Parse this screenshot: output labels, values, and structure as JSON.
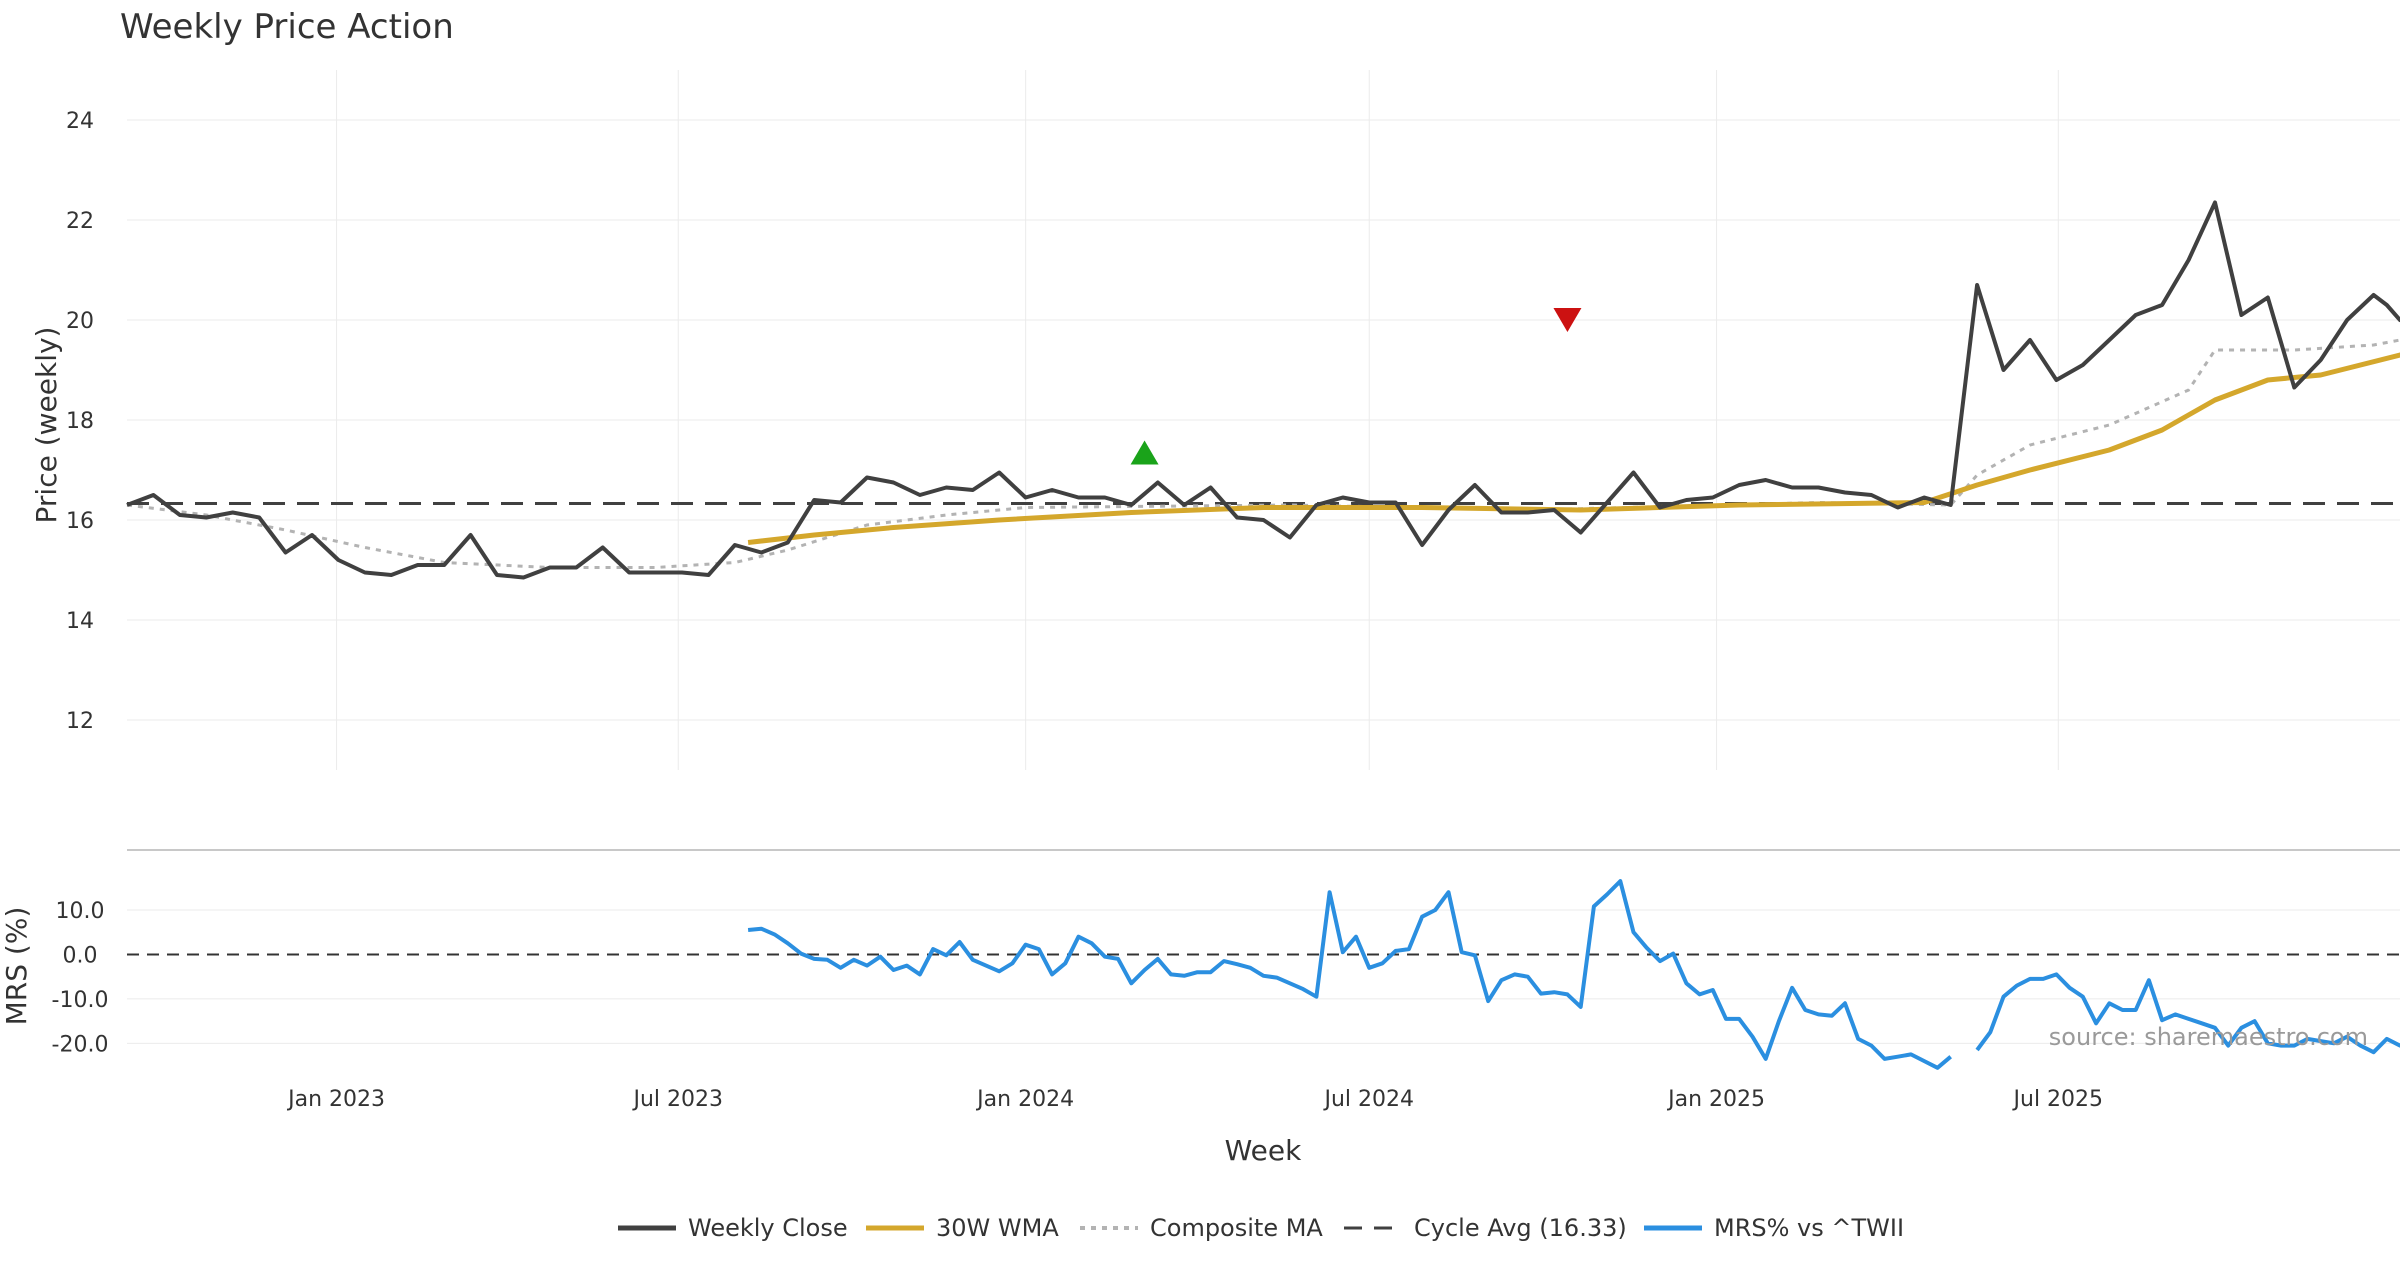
{
  "chart_data": {
    "type": "line",
    "title": "Weekly Price Action",
    "xlabel": "Week",
    "source": "source: sharemaestro.com",
    "colors": {
      "weekly_close": "#404040",
      "wma30": "#d4a72c",
      "composite_ma": "#b3b3b3",
      "cycle_avg": "#404040",
      "mrs": "#2b8fe0",
      "buy_marker": "#1aa31a",
      "sell_marker": "#cc1111",
      "grid": "#ebebeb",
      "separator": "#c8c8c8"
    },
    "x_ticks": [
      {
        "date": "2023-01-01",
        "label": "Jan 2023"
      },
      {
        "date": "2023-07-01",
        "label": "Jul 2023"
      },
      {
        "date": "2024-01-01",
        "label": "Jan 2024"
      },
      {
        "date": "2024-07-01",
        "label": "Jul 2024"
      },
      {
        "date": "2025-01-01",
        "label": "Jan 2025"
      },
      {
        "date": "2025-07-01",
        "label": "Jul 2025"
      }
    ],
    "x_range": [
      "2022-09-12",
      "2025-12-29"
    ],
    "price_panel": {
      "ylabel": "Price (weekly)",
      "ylim": [
        11,
        25
      ],
      "yticks": [
        12,
        14,
        16,
        18,
        20,
        22,
        24
      ],
      "cycle_avg": 16.33,
      "series": [
        {
          "name": "Weekly Close",
          "points": [
            [
              "2022-09-12",
              16.3
            ],
            [
              "2022-09-26",
              16.5
            ],
            [
              "2022-10-10",
              16.1
            ],
            [
              "2022-10-24",
              16.05
            ],
            [
              "2022-11-07",
              16.15
            ],
            [
              "2022-11-21",
              16.05
            ],
            [
              "2022-12-05",
              15.35
            ],
            [
              "2022-12-19",
              15.7
            ],
            [
              "2023-01-02",
              15.2
            ],
            [
              "2023-01-16",
              14.95
            ],
            [
              "2023-01-30",
              14.9
            ],
            [
              "2023-02-13",
              15.1
            ],
            [
              "2023-02-27",
              15.1
            ],
            [
              "2023-03-13",
              15.7
            ],
            [
              "2023-03-27",
              14.9
            ],
            [
              "2023-04-10",
              14.85
            ],
            [
              "2023-04-24",
              15.05
            ],
            [
              "2023-05-08",
              15.05
            ],
            [
              "2023-05-22",
              15.45
            ],
            [
              "2023-06-05",
              14.95
            ],
            [
              "2023-06-19",
              14.95
            ],
            [
              "2023-07-03",
              14.95
            ],
            [
              "2023-07-17",
              14.9
            ],
            [
              "2023-07-31",
              15.5
            ],
            [
              "2023-08-14",
              15.35
            ],
            [
              "2023-08-28",
              15.55
            ],
            [
              "2023-09-11",
              16.4
            ],
            [
              "2023-09-25",
              16.35
            ],
            [
              "2023-10-09",
              16.85
            ],
            [
              "2023-10-23",
              16.75
            ],
            [
              "2023-11-06",
              16.5
            ],
            [
              "2023-11-20",
              16.65
            ],
            [
              "2023-12-04",
              16.6
            ],
            [
              "2023-12-18",
              16.95
            ],
            [
              "2024-01-01",
              16.45
            ],
            [
              "2024-01-15",
              16.6
            ],
            [
              "2024-01-29",
              16.45
            ],
            [
              "2024-02-12",
              16.45
            ],
            [
              "2024-02-26",
              16.3
            ],
            [
              "2024-03-11",
              16.75
            ],
            [
              "2024-03-25",
              16.3
            ],
            [
              "2024-04-08",
              16.65
            ],
            [
              "2024-04-22",
              16.05
            ],
            [
              "2024-05-06",
              16.0
            ],
            [
              "2024-05-20",
              15.65
            ],
            [
              "2024-06-03",
              16.3
            ],
            [
              "2024-06-17",
              16.45
            ],
            [
              "2024-07-01",
              16.35
            ],
            [
              "2024-07-15",
              16.35
            ],
            [
              "2024-07-29",
              15.5
            ],
            [
              "2024-08-12",
              16.2
            ],
            [
              "2024-08-26",
              16.7
            ],
            [
              "2024-09-09",
              16.15
            ],
            [
              "2024-09-23",
              16.15
            ],
            [
              "2024-10-07",
              16.2
            ],
            [
              "2024-10-21",
              15.75
            ],
            [
              "2024-11-04",
              16.35
            ],
            [
              "2024-11-18",
              16.95
            ],
            [
              "2024-12-02",
              16.25
            ],
            [
              "2024-12-16",
              16.4
            ],
            [
              "2024-12-30",
              16.45
            ],
            [
              "2025-01-13",
              16.7
            ],
            [
              "2025-01-27",
              16.8
            ],
            [
              "2025-02-10",
              16.65
            ],
            [
              "2025-02-24",
              16.65
            ],
            [
              "2025-03-10",
              16.55
            ],
            [
              "2025-03-24",
              16.5
            ],
            [
              "2025-04-07",
              16.25
            ],
            [
              "2025-04-21",
              16.45
            ],
            [
              "2025-05-05",
              16.3
            ],
            [
              "2025-05-19",
              20.7
            ],
            [
              "2025-06-02",
              19.0
            ],
            [
              "2025-06-16",
              19.6
            ],
            [
              "2025-06-30",
              18.8
            ],
            [
              "2025-07-14",
              19.1
            ],
            [
              "2025-07-28",
              19.6
            ],
            [
              "2025-08-11",
              20.1
            ],
            [
              "2025-08-25",
              20.3
            ],
            [
              "2025-09-08",
              21.2
            ],
            [
              "2025-09-22",
              22.35
            ],
            [
              "2025-10-06",
              20.1
            ],
            [
              "2025-10-20",
              20.45
            ],
            [
              "2025-11-03",
              18.65
            ],
            [
              "2025-11-17",
              19.2
            ],
            [
              "2025-12-01",
              20.0
            ],
            [
              "2025-12-15",
              20.5
            ]
          ]
        },
        {
          "name": "30W WMA",
          "points": []
        },
        {
          "name": "Composite MA",
          "points": []
        }
      ]
    },
    "mrs_panel": {
      "ylabel": "MRS (%)",
      "ylim": [
        -26,
        19
      ],
      "yticks": [
        {
          "value": 10,
          "label": "10.0"
        },
        {
          "value": 0,
          "label": "0.0"
        },
        {
          "value": -10,
          "label": "-10.0"
        },
        {
          "value": -20,
          "label": "-20.0"
        }
      ],
      "series_name": "MRS% vs ^TWII"
    },
    "markers": [
      {
        "type": "buy",
        "date": "2024-03-04",
        "value": 17.35
      },
      {
        "type": "sell",
        "date": "2024-10-14",
        "value": 20.0
      }
    ],
    "legend": {
      "position": "bottom",
      "entries": [
        {
          "label": "Weekly Close",
          "style": "solid",
          "color_key": "weekly_close"
        },
        {
          "label": "30W WMA",
          "style": "solid",
          "color_key": "wma30"
        },
        {
          "label": "Composite MA",
          "style": "dotted",
          "color_key": "composite_ma"
        },
        {
          "label": "Cycle Avg (16.33)",
          "style": "dashed",
          "color_key": "cycle_avg"
        },
        {
          "label": "MRS% vs ^TWII",
          "style": "solid",
          "color_key": "mrs"
        }
      ]
    }
  }
}
